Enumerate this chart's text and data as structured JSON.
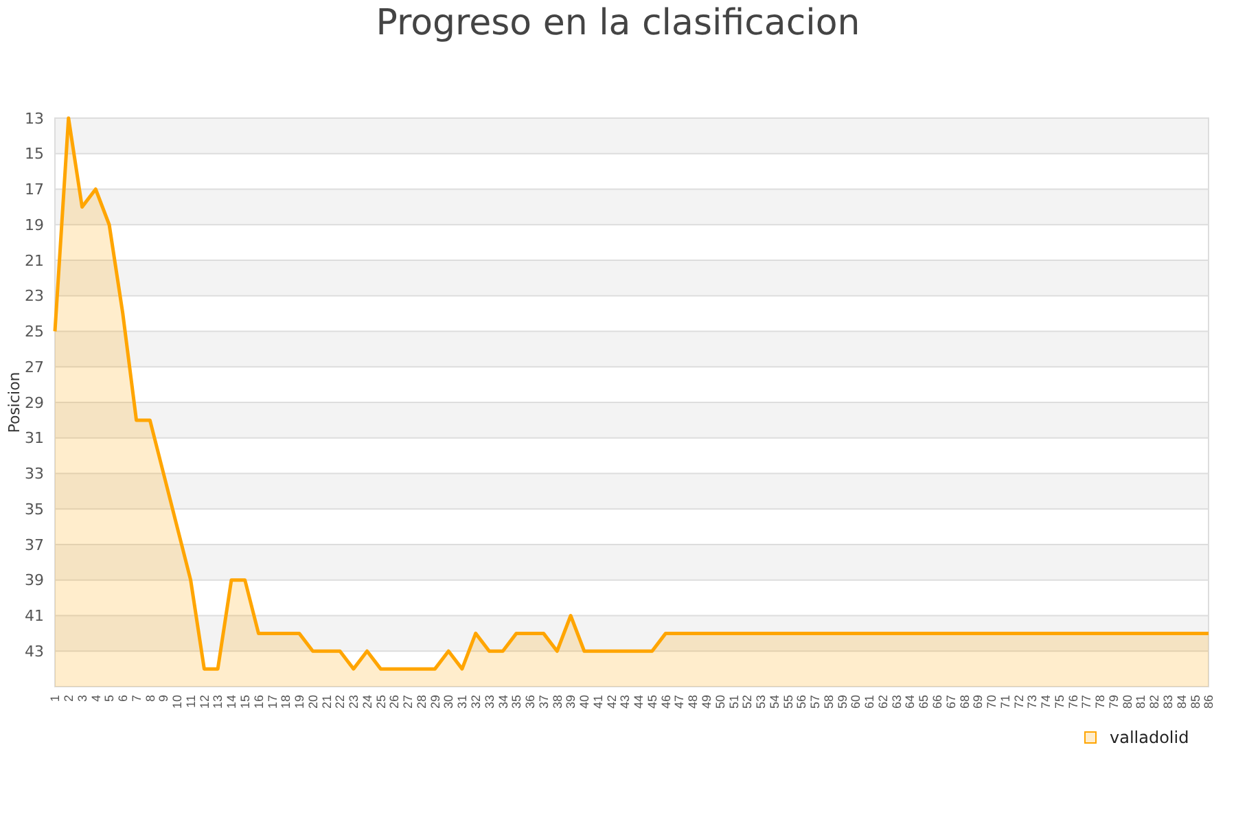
{
  "chart_data": {
    "type": "area",
    "title": "Progreso en la clasificacion",
    "ylabel": "Posicion",
    "categories": [
      "1",
      "2",
      "3",
      "4",
      "5",
      "6",
      "7",
      "8",
      "9",
      "10",
      "11",
      "12",
      "13",
      "14",
      "15",
      "16",
      "17",
      "18",
      "19",
      "20",
      "21",
      "22",
      "23",
      "24",
      "25",
      "26",
      "27",
      "28",
      "29",
      "30",
      "31",
      "32",
      "33",
      "34",
      "35",
      "36",
      "37",
      "38",
      "39",
      "40",
      "41",
      "42",
      "43",
      "44",
      "45",
      "46",
      "47",
      "48",
      "49",
      "50",
      "51",
      "52",
      "53",
      "54",
      "55",
      "56",
      "57",
      "58",
      "59",
      "60",
      "61",
      "62",
      "63",
      "64",
      "65",
      "66",
      "67",
      "68",
      "69",
      "70",
      "71",
      "72",
      "73",
      "74",
      "75",
      "76",
      "77",
      "78",
      "79",
      "80",
      "81",
      "82",
      "83",
      "84",
      "85",
      "86"
    ],
    "series": [
      {
        "name": "valladolid",
        "color": "#ffa500",
        "values": [
          25,
          13,
          18,
          17,
          19,
          24,
          30,
          30,
          33,
          36,
          39,
          44,
          44,
          39,
          39,
          42,
          42,
          42,
          42,
          43,
          43,
          43,
          44,
          43,
          44,
          44,
          44,
          44,
          44,
          43,
          44,
          42,
          43,
          43,
          42,
          42,
          42,
          43,
          41,
          43,
          43,
          43,
          43,
          43,
          43,
          42,
          42,
          42,
          42,
          42,
          42,
          42,
          42,
          42,
          42,
          42,
          42,
          42,
          42,
          42,
          42,
          42,
          42,
          42,
          42,
          42,
          42,
          42,
          42,
          42,
          42,
          42,
          42,
          42,
          42,
          42,
          42,
          42,
          42,
          42,
          42,
          42,
          42,
          42,
          42,
          42
        ]
      }
    ],
    "ylim": [
      45,
      13
    ],
    "yticks": [
      13,
      15,
      17,
      19,
      21,
      23,
      25,
      27,
      29,
      31,
      33,
      35,
      37,
      39,
      41,
      43
    ],
    "grid": "y",
    "legend": "bottom right",
    "line_style": "solid",
    "marker": "none"
  }
}
